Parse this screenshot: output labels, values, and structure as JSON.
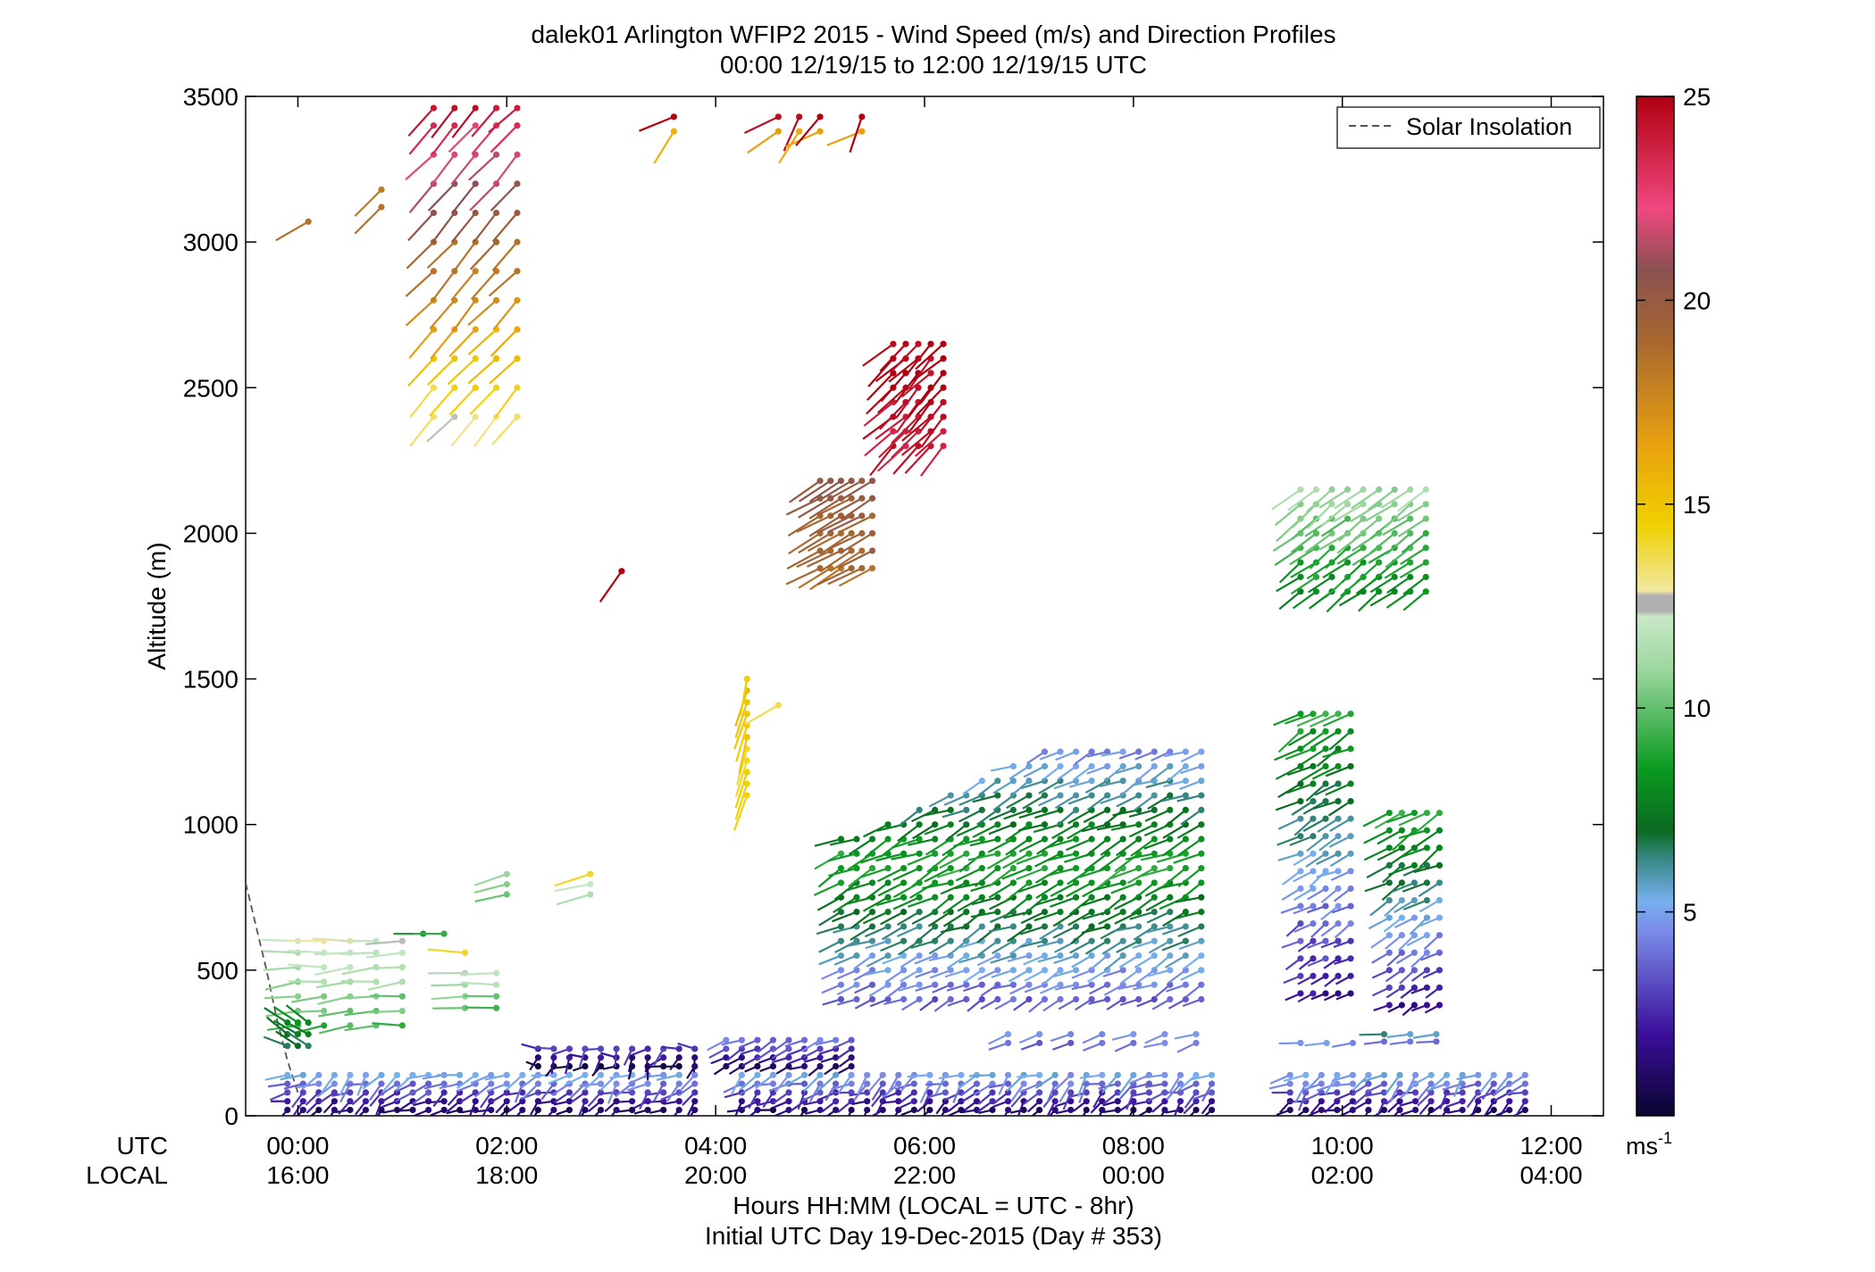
{
  "chart_data": {
    "type": "scatter",
    "title_line1": "dalek01 Arlington WFIP2 2015 - Wind Speed (m/s) and Direction Profiles",
    "title_line2": "00:00 12/19/15 to 12:00 12/19/15  UTC",
    "ylabel": "Altitude (m)",
    "ylim": [
      0,
      3500
    ],
    "xlim_hours": [
      -0.5,
      12.5
    ],
    "y_ticks": [
      {
        "v": 0,
        "label": "0"
      },
      {
        "v": 500,
        "label": "500"
      },
      {
        "v": 1000,
        "label": "1000"
      },
      {
        "v": 1500,
        "label": "1500"
      },
      {
        "v": 2000,
        "label": "2000"
      },
      {
        "v": 2500,
        "label": "2500"
      },
      {
        "v": 3000,
        "label": "3000"
      },
      {
        "v": 3500,
        "label": "3500"
      }
    ],
    "x_ticks": [
      {
        "v": 0,
        "utc": "00:00",
        "local": "16:00"
      },
      {
        "v": 2,
        "utc": "02:00",
        "local": "18:00"
      },
      {
        "v": 4,
        "utc": "04:00",
        "local": "20:00"
      },
      {
        "v": 6,
        "utc": "06:00",
        "local": "22:00"
      },
      {
        "v": 8,
        "utc": "08:00",
        "local": "00:00"
      },
      {
        "v": 10,
        "utc": "10:00",
        "local": "02:00"
      },
      {
        "v": 12,
        "utc": "12:00",
        "local": "04:00"
      }
    ],
    "utc_row_label": "UTC",
    "local_row_label": "LOCAL",
    "xlabel_line1": "Hours HH:MM  (LOCAL = UTC - 8hr)",
    "xlabel_line2": "Initial UTC Day 19-Dec-2015 (Day # 353)",
    "legend": {
      "label": "Solar Insolation",
      "placement": "top-right"
    },
    "colorbar": {
      "range": [
        0,
        25
      ],
      "ticks": [
        {
          "v": 5,
          "label": "5"
        },
        {
          "v": 10,
          "label": "10"
        },
        {
          "v": 15,
          "label": "15"
        },
        {
          "v": 20,
          "label": "20"
        },
        {
          "v": 25,
          "label": "25"
        }
      ],
      "unit_label": "ms",
      "unit_exponent": "-1"
    },
    "solar_insolation": [
      [
        -0.5,
        800
      ],
      [
        -0.4,
        650
      ],
      [
        -0.3,
        500
      ],
      [
        -0.2,
        330
      ],
      [
        -0.1,
        190
      ],
      [
        0.0,
        80
      ]
    ],
    "groups": [
      {
        "t0": -0.1,
        "t1": 11.8,
        "dt": 0.15,
        "alts": [
          20,
          50,
          80,
          110,
          140
        ],
        "speed": [
          1,
          5
        ],
        "dir": [
          200,
          270
        ],
        "gaps": [
          [
            3.95,
            4.1
          ],
          [
            8.8,
            9.4
          ]
        ]
      },
      {
        "t0": 2.3,
        "t1": 3.9,
        "dt": 0.15,
        "alts": [
          170,
          200,
          230
        ],
        "speed": [
          0.5,
          3
        ],
        "dir": [
          180,
          300
        ]
      },
      {
        "t0": 4.1,
        "t1": 5.4,
        "dt": 0.15,
        "alts": [
          170,
          200,
          230,
          260
        ],
        "speed": [
          1,
          4
        ],
        "dir": [
          230,
          260
        ]
      },
      {
        "t0": 0.0,
        "t1": 1.0,
        "dt": 0.25,
        "alts": [
          310,
          360,
          410,
          460,
          510,
          560,
          600
        ],
        "speed": [
          9.5,
          12.5
        ],
        "dir": [
          255,
          275
        ]
      },
      {
        "t0": -0.1,
        "t1": 0.1,
        "dt": 0.1,
        "alts": [
          240,
          280,
          320
        ],
        "speed": [
          7,
          8
        ],
        "dir": [
          290,
          310
        ]
      },
      {
        "t0": 1.6,
        "t1": 1.9,
        "dt": 0.3,
        "alts": [
          370,
          410,
          450,
          490
        ],
        "speed": [
          10,
          12
        ],
        "dir": [
          265,
          275
        ]
      },
      {
        "t0": 1.2,
        "t1": 1.4,
        "dt": 0.2,
        "alts": [
          625
        ],
        "speed": [
          9,
          9
        ],
        "dir": [
          270,
          270
        ]
      },
      {
        "t0": 1.6,
        "t1": 1.6,
        "dt": 0.2,
        "alts": [
          560
        ],
        "speed": [
          14,
          14
        ],
        "dir": [
          275,
          275
        ]
      },
      {
        "t0": 2.0,
        "t1": 2.0,
        "dt": 0.2,
        "alts": [
          760,
          795,
          830
        ],
        "speed": [
          10,
          11
        ],
        "dir": [
          250,
          260
        ]
      },
      {
        "t0": 2.8,
        "t1": 2.8,
        "dt": 0.2,
        "alts": [
          760,
          795,
          830
        ],
        "speed": [
          11,
          14
        ],
        "dir": [
          250,
          260
        ]
      },
      {
        "t0": 5.2,
        "t1": 8.7,
        "dt": 0.15,
        "alts": [
          400,
          450,
          500,
          550,
          600,
          650,
          700,
          750,
          800,
          850,
          900,
          950,
          1000,
          1050,
          1100,
          1150,
          1200,
          1250
        ],
        "speed": [
          2,
          9
        ],
        "dir": [
          230,
          260
        ],
        "top": [
          950,
          1250
        ]
      },
      {
        "t0": 6.8,
        "t1": 8.6,
        "dt": 0.3,
        "alts": [
          250,
          280
        ],
        "speed": [
          4,
          5
        ],
        "dir": [
          240,
          260
        ]
      },
      {
        "t0": 9.6,
        "t1": 10.1,
        "dt": 0.12,
        "alts": [
          420,
          480,
          540,
          600,
          660,
          720,
          780,
          840,
          900,
          960,
          1020,
          1080,
          1140,
          1200,
          1260,
          1320,
          1380
        ],
        "speed": [
          2,
          9
        ],
        "dir": [
          225,
          255
        ]
      },
      {
        "t0": 10.45,
        "t1": 11.0,
        "dt": 0.12,
        "alts": [
          380,
          440,
          500,
          560,
          620,
          680,
          740,
          800,
          860,
          920,
          980,
          1040
        ],
        "speed": [
          2,
          9
        ],
        "dir": [
          225,
          255
        ]
      },
      {
        "t0": 9.6,
        "t1": 10.1,
        "dt": 0.25,
        "alts": [
          250
        ],
        "speed": [
          5,
          6
        ],
        "dir": [
          250,
          270
        ]
      },
      {
        "t0": 10.4,
        "t1": 10.9,
        "dt": 0.25,
        "alts": [
          255,
          280
        ],
        "speed": [
          4,
          6
        ],
        "dir": [
          250,
          270
        ]
      },
      {
        "t0": 4.3,
        "t1": 4.3,
        "dt": 0.2,
        "alts": [
          1100,
          1140,
          1180,
          1220,
          1260,
          1300,
          1340,
          1380,
          1420,
          1460,
          1500
        ],
        "speed": [
          14,
          15
        ],
        "dir": [
          190,
          200
        ]
      },
      {
        "t0": 4.6,
        "t1": 4.6,
        "dt": 0.2,
        "alts": [
          1410
        ],
        "speed": [
          14,
          14
        ],
        "dir": [
          240,
          240
        ]
      },
      {
        "t0": 5.0,
        "t1": 5.5,
        "dt": 0.1,
        "alts": [
          1880,
          1940,
          2000,
          2060,
          2120,
          2180
        ],
        "speed": [
          19,
          20
        ],
        "dir": [
          235,
          245
        ]
      },
      {
        "t0": 5.7,
        "t1": 6.2,
        "dt": 0.12,
        "alts": [
          2300,
          2350,
          2400,
          2450,
          2500,
          2550,
          2600,
          2650
        ],
        "speed": [
          24,
          25
        ],
        "dir": [
          215,
          235
        ]
      },
      {
        "t0": 3.1,
        "t1": 3.1,
        "dt": 0.2,
        "alts": [
          1870
        ],
        "speed": [
          25,
          25
        ],
        "dir": [
          215,
          215
        ]
      },
      {
        "t0": 9.6,
        "t1": 10.8,
        "dt": 0.15,
        "alts": [
          1800,
          1850,
          1900,
          1950,
          2000,
          2050,
          2100,
          2150
        ],
        "speed": [
          8,
          11
        ],
        "dir": [
          225,
          240
        ]
      },
      {
        "t0": 0.1,
        "t1": 0.1,
        "dt": 0.2,
        "alts": [
          3070
        ],
        "speed": [
          18,
          18
        ],
        "dir": [
          240,
          240
        ]
      },
      {
        "t0": 0.8,
        "t1": 0.8,
        "dt": 0.2,
        "alts": [
          3120,
          3180
        ],
        "speed": [
          18,
          18
        ],
        "dir": [
          225,
          225
        ]
      },
      {
        "t0": 1.3,
        "t1": 2.1,
        "dt": 0.2,
        "alts": [
          2400,
          2500,
          2600,
          2700,
          2800,
          2900,
          3000,
          3100,
          3200,
          3300,
          3400,
          3460
        ],
        "speed": [
          13,
          24
        ],
        "dir": [
          215,
          230
        ]
      },
      {
        "t0": 3.6,
        "t1": 5.8,
        "dt": 0.2,
        "alts": [
          3380,
          3430
        ],
        "speed": [
          16,
          25
        ],
        "dir": [
          190,
          250
        ],
        "sparse": true
      }
    ]
  }
}
